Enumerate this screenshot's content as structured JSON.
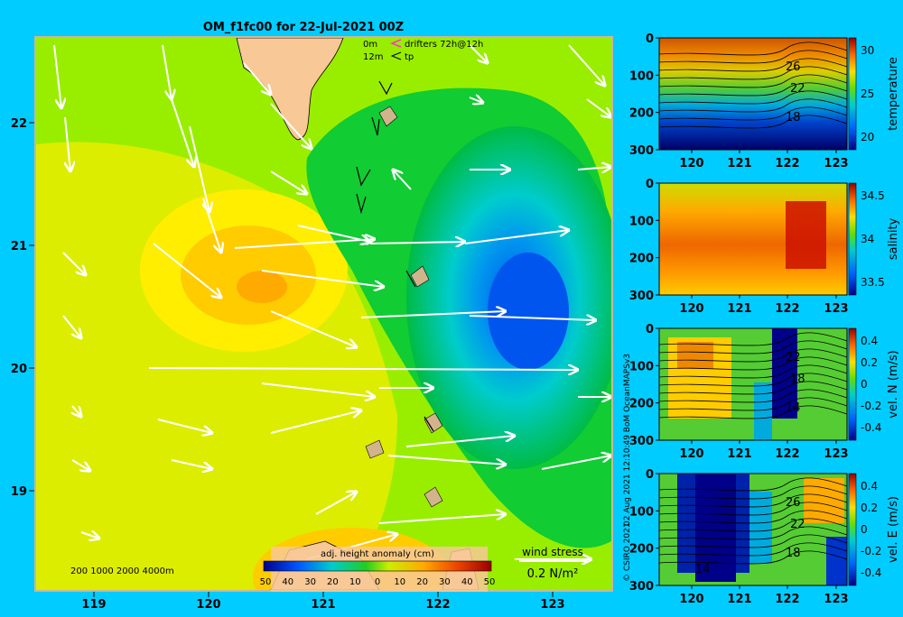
{
  "header": {
    "title": "OM_f1fc00 for 22-Jul-2021 00Z",
    "legend_0m": "0m",
    "legend_12m": "12m",
    "legend_drifters": "drifters 72h@12h",
    "legend_tp": "tp",
    "legend_drifters_color": "#ff33cc"
  },
  "map": {
    "lon_ticks": [
      "119",
      "120",
      "121",
      "122",
      "123"
    ],
    "lat_ticks": [
      "22",
      "21",
      "20",
      "19"
    ],
    "depth_legend": "200  1000  2000  4000m",
    "wind_stress_label": "wind stress",
    "wind_stress_scale": "0.2 N/m²",
    "colorbar_title": "adj. height anomaly (cm)",
    "colorbar_ticks": [
      "50",
      "40",
      "30",
      "20",
      "10",
      "0",
      "10",
      "20",
      "30",
      "40",
      "50"
    ],
    "colorbar_colors": [
      "#00008b",
      "#0022cc",
      "#0066ff",
      "#0099ee",
      "#00cccc",
      "#00bb66",
      "#22cc22",
      "#88dd00",
      "#ccee00",
      "#ffdd00",
      "#ffaa00",
      "#ff7700",
      "#ee4400",
      "#cc1100",
      "#990000"
    ]
  },
  "credits": {
    "copyright": "© CSIRO 2021",
    "timestamp": "02 Aug 2021 12:10:49 BoM OceanMAPSv3"
  },
  "sections": [
    {
      "name": "temperature",
      "ylabel": "temperature",
      "y_ticks": [
        "0",
        "100",
        "200",
        "300"
      ],
      "x_ticks": [
        "120",
        "121",
        "122",
        "123"
      ],
      "cbar_ticks": [
        "30",
        "25",
        "20"
      ],
      "contour_labels": [
        "26",
        "22",
        "18"
      ]
    },
    {
      "name": "salinity",
      "ylabel": "salinity",
      "y_ticks": [
        "0",
        "100",
        "200",
        "300"
      ],
      "x_ticks": [
        "120",
        "121",
        "122",
        "123"
      ],
      "cbar_ticks": [
        "34.5",
        "34",
        "33.5"
      ],
      "contour_labels": []
    },
    {
      "name": "vel-n",
      "ylabel": "vel. N (m/s)",
      "y_ticks": [
        "0",
        "100",
        "200",
        "300"
      ],
      "x_ticks": [
        "120",
        "121",
        "122",
        "123"
      ],
      "cbar_ticks": [
        "0.4",
        "0.2",
        "0",
        "-0.2",
        "-0.4"
      ],
      "contour_labels": [
        "22",
        "18",
        "14"
      ]
    },
    {
      "name": "vel-e",
      "ylabel": "vel. E (m/s)",
      "y_ticks": [
        "0",
        "100",
        "200",
        "300"
      ],
      "x_ticks": [
        "120",
        "121",
        "122",
        "123"
      ],
      "cbar_ticks": [
        "0.4",
        "0.2",
        "0",
        "-0.2",
        "-0.4"
      ],
      "contour_labels": [
        "26",
        "22",
        "18",
        "14"
      ]
    }
  ]
}
